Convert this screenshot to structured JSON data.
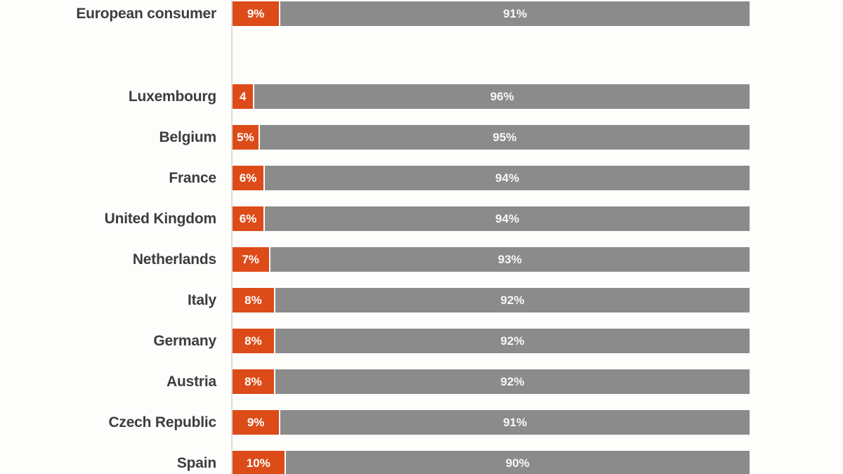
{
  "chart_data": {
    "type": "bar",
    "orientation": "horizontal",
    "stacked": true,
    "title": "",
    "xlabel": "",
    "ylabel": "",
    "xlim": [
      0,
      100
    ],
    "grid": false,
    "legend": "none",
    "categories": [
      "European consumer",
      "Luxembourg",
      "Belgium",
      "France",
      "United Kingdom",
      "Netherlands",
      "Italy",
      "Germany",
      "Austria",
      "Czech Republic",
      "Spain"
    ],
    "series": [
      {
        "name": "orange-segment",
        "values": [
          9,
          4,
          5,
          6,
          6,
          7,
          8,
          8,
          8,
          9,
          10
        ],
        "labels": [
          "9%",
          "4",
          "5%",
          "6%",
          "6%",
          "7%",
          "8%",
          "8%",
          "8%",
          "9%",
          "10%"
        ],
        "color": "#dc4b18"
      },
      {
        "name": "gray-segment",
        "values": [
          91,
          96,
          95,
          94,
          94,
          93,
          92,
          92,
          92,
          91,
          90
        ],
        "labels": [
          "91%",
          "96%",
          "95%",
          "94%",
          "94%",
          "93%",
          "92%",
          "92%",
          "92%",
          "91%",
          "90%"
        ],
        "color": "#8b8b8b"
      }
    ],
    "layout_hint": "aggregate row (European consumer) separated by a large gap from the individual country rows"
  },
  "colors": {
    "orange": "#dc4b18",
    "gray": "#8b8b8b",
    "category_label_text": "#3d3d3d",
    "axis_line": "#dcd9d4",
    "background": "#fdfdfc"
  }
}
